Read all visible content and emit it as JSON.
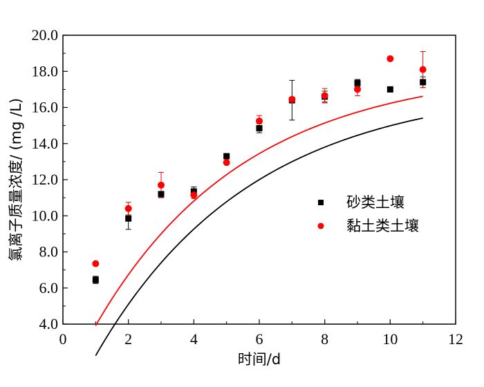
{
  "chart_data": {
    "type": "scatter",
    "title": "",
    "xlabel": "时间/d",
    "ylabel": "氯离子质量浓度/ (mg /L)",
    "xlim": [
      0,
      12
    ],
    "ylim": [
      4.0,
      20.0
    ],
    "xticks": [
      "0",
      "2",
      "4",
      "6",
      "8",
      "10",
      "12"
    ],
    "yticks": [
      "4.0",
      "6.0",
      "8.0",
      "10.0",
      "12.0",
      "14.0",
      "16.0",
      "18.0",
      "20.0"
    ],
    "grid": false,
    "legend_position": "center-right",
    "series": [
      {
        "name": "砂类土壤",
        "marker": "square",
        "color": "#000000",
        "x": [
          1,
          2,
          3,
          4,
          5,
          6,
          7,
          8,
          9,
          10,
          11
        ],
        "y": [
          6.45,
          9.85,
          11.2,
          11.35,
          13.3,
          14.85,
          16.4,
          16.6,
          17.35,
          17.0,
          17.4
        ],
        "err": [
          0.2,
          0.6,
          0.15,
          0.25,
          0.1,
          0.25,
          1.1,
          0.3,
          0.2,
          0.0,
          0.3
        ],
        "fit": {
          "type": "exponential",
          "asymptote": 17.25,
          "amplitude": 18.5,
          "rate": 0.21,
          "x_range": [
            1,
            11
          ]
        }
      },
      {
        "name": "黏土类土壤",
        "marker": "circle",
        "color": "#ff0000",
        "x": [
          1,
          2,
          3,
          4,
          5,
          6,
          7,
          8,
          9,
          10,
          11
        ],
        "y": [
          7.35,
          10.4,
          11.7,
          11.15,
          12.95,
          15.25,
          16.45,
          16.65,
          17.0,
          18.7,
          18.1
        ],
        "err": [
          0.0,
          0.35,
          0.7,
          0.2,
          0.0,
          0.3,
          0.0,
          0.4,
          0.35,
          0.0,
          1.0
        ],
        "fit": {
          "type": "exponential",
          "asymptote": 18.2,
          "amplitude": 17.8,
          "rate": 0.22,
          "x_range": [
            1,
            11
          ]
        }
      }
    ]
  }
}
